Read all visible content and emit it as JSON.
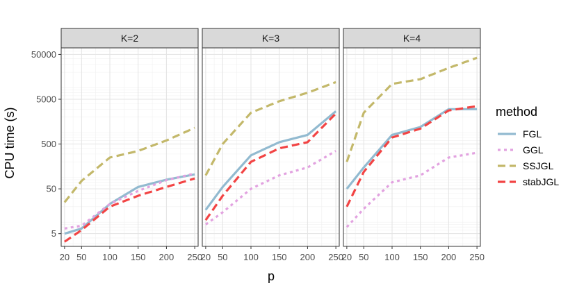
{
  "chart_data": {
    "type": "line",
    "facet_label_template": "K=",
    "xlabel": "p",
    "ylabel": "CPU time (s)",
    "yscale": "log10",
    "ylim": [
      2.6,
      70000
    ],
    "xlim": [
      14,
      256
    ],
    "x_ticks": [
      20,
      50,
      100,
      150,
      200,
      250
    ],
    "y_ticks": [
      5,
      50,
      500,
      5000,
      50000
    ],
    "y_tick_labels": [
      "5",
      "50",
      "500",
      "5000",
      "50000"
    ],
    "x": [
      20,
      50,
      100,
      150,
      200,
      250
    ],
    "legend": {
      "title": "method",
      "position": "right"
    },
    "grid": true,
    "facets": [
      {
        "K": 2,
        "label": "K=2",
        "series": [
          {
            "name": "FGL",
            "color": "#92bad0",
            "dash": "solid",
            "values": [
              5,
              6.5,
              23,
              55,
              80,
              105
            ]
          },
          {
            "name": "GGL",
            "color": "#e2a2e0",
            "dash": "dot",
            "values": [
              6.5,
              7.5,
              23,
              45,
              78,
              110
            ]
          },
          {
            "name": "SSJGL",
            "color": "#c3b86a",
            "dash": "dash",
            "values": [
              25,
              75,
              250,
              350,
              600,
              1150
            ]
          },
          {
            "name": "stabJGL",
            "color": "#f24444",
            "dash": "dash",
            "values": [
              3.3,
              6,
              20,
              35,
              55,
              85
            ]
          }
        ]
      },
      {
        "K": 3,
        "label": "K=3",
        "series": [
          {
            "name": "FGL",
            "color": "#92bad0",
            "dash": "solid",
            "values": [
              17,
              55,
              280,
              550,
              800,
              2700
            ]
          },
          {
            "name": "GGL",
            "color": "#e2a2e0",
            "dash": "dot",
            "values": [
              8,
              15,
              50,
              100,
              150,
              350
            ]
          },
          {
            "name": "SSJGL",
            "color": "#c3b86a",
            "dash": "dash",
            "values": [
              100,
              500,
              2500,
              4500,
              7000,
              12000
            ]
          },
          {
            "name": "stabJGL",
            "color": "#f24444",
            "dash": "dash",
            "values": [
              10,
              35,
              200,
              400,
              550,
              2400
            ]
          }
        ]
      },
      {
        "K": 4,
        "label": "K=4",
        "series": [
          {
            "name": "FGL",
            "color": "#92bad0",
            "dash": "solid",
            "values": [
              50,
              150,
              800,
              1200,
              3000,
              3000
            ]
          },
          {
            "name": "GGL",
            "color": "#e2a2e0",
            "dash": "dot",
            "values": [
              7,
              18,
              70,
              100,
              250,
              320
            ]
          },
          {
            "name": "SSJGL",
            "color": "#c3b86a",
            "dash": "dash",
            "values": [
              200,
              2500,
              11000,
              14000,
              25000,
              42000
            ]
          },
          {
            "name": "stabJGL",
            "color": "#f24444",
            "dash": "dash",
            "values": [
              20,
              120,
              700,
              1100,
              2800,
              3500
            ]
          }
        ]
      }
    ]
  }
}
